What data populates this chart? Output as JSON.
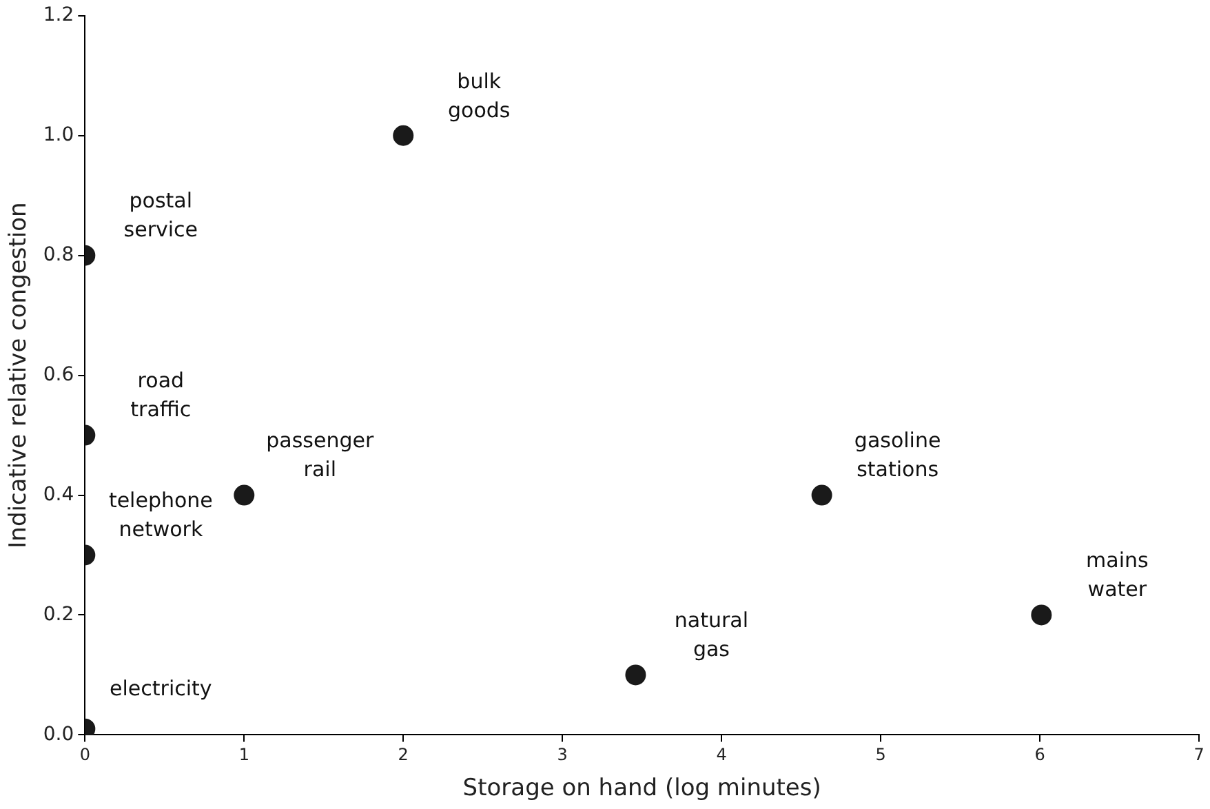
{
  "chart_data": {
    "type": "scatter",
    "xlabel": "Storage on hand (log minutes)",
    "ylabel": "Indicative relative congestion",
    "x": [
      0,
      0,
      0,
      0,
      1,
      2,
      3.46,
      4.63,
      6.01
    ],
    "series": [
      {
        "color": "#1a1a1a",
        "values": [
          0.01,
          0.3,
          0.5,
          0.8,
          0.4,
          1.0,
          0.1,
          0.4,
          0.2
        ]
      }
    ],
    "marker": "circle",
    "grid": false,
    "legend": false,
    "xlim": [
      0,
      7
    ],
    "xticks": [
      0,
      1,
      2,
      3,
      4,
      5,
      6,
      7
    ],
    "ylim": [
      0,
      1.2
    ],
    "yticks": [
      {
        "value": 0,
        "label": "0.0"
      },
      {
        "value": 0.2,
        "label": "0.2"
      },
      {
        "value": 0.4,
        "label": "0.4"
      },
      {
        "value": 0.6,
        "label": "0.6"
      },
      {
        "value": 0.8,
        "label": "0.8"
      },
      {
        "value": 1.0,
        "label": "1.0"
      },
      {
        "value": 1.2,
        "label": "1.2"
      }
    ],
    "annotations": [
      {
        "text": "electricity",
        "x": 0,
        "y": 0.01
      },
      {
        "text": "telephone network",
        "x": 0,
        "y": 0.3
      },
      {
        "text": "road traffic",
        "x": 0,
        "y": 0.5
      },
      {
        "text": "postal service",
        "x": 0,
        "y": 0.8
      },
      {
        "text": "passenger rail",
        "x": 1,
        "y": 0.4
      },
      {
        "text": "bulk goods",
        "x": 2,
        "y": 1.0
      },
      {
        "text": "natural gas",
        "x": 3.46,
        "y": 0.1
      },
      {
        "text": "gasoline stations",
        "x": 4.63,
        "y": 0.4
      },
      {
        "text": "mains water",
        "x": 6.01,
        "y": 0.2
      }
    ]
  }
}
